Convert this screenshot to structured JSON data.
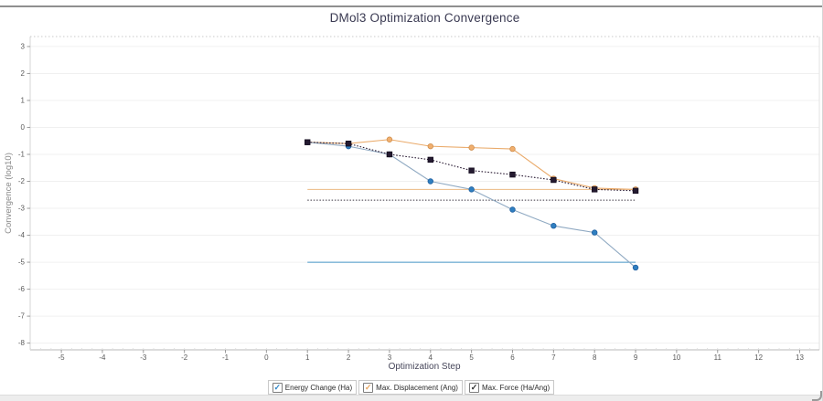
{
  "title": "DMol3 Optimization Convergence",
  "chart_data": {
    "type": "line",
    "title": "DMol3 Optimization Convergence",
    "xlabel": "Optimization Step",
    "ylabel": "Convergence (log10)",
    "x_range": [
      -5.76,
      13.48
    ],
    "y_range": [
      -8.25,
      3.37
    ],
    "x_ticks": [
      -5,
      -4,
      -3,
      -2,
      -1,
      0,
      1,
      2,
      3,
      4,
      5,
      6,
      7,
      8,
      9,
      10,
      11,
      12,
      13
    ],
    "y_ticks": [
      3,
      2,
      1,
      0,
      -1,
      -2,
      -3,
      -4,
      -5,
      -6,
      -7,
      -8
    ],
    "grid": "horizontal",
    "legend_position": "bottom",
    "threshold_x_span": [
      1,
      9
    ],
    "x": [
      1,
      2,
      3,
      4,
      5,
      6,
      7,
      8,
      9
    ],
    "series": [
      {
        "name": "Energy Change (Ha)",
        "values": [
          -0.55,
          -0.7,
          -1.0,
          -2.0,
          -2.3,
          -3.05,
          -3.65,
          -3.9,
          -5.2
        ],
        "threshold": -5.0,
        "color": "#8fa9c2",
        "marker_color": "#2f7fc1",
        "marker_edge": "#1f5f9f",
        "threshold_color": "#4796c8",
        "check_color": "#2e86c8",
        "marker": "circle",
        "line_style": "solid",
        "threshold_style": "solid"
      },
      {
        "name": "Max. Displacement (Ang)",
        "values": [
          -0.55,
          -0.6,
          -0.45,
          -0.7,
          -0.75,
          -0.8,
          -1.9,
          -2.25,
          -2.3
        ],
        "threshold": -2.3,
        "color": "#eaaa6a",
        "marker_color": "#f1af6e",
        "marker_edge": "#cf8f4e",
        "threshold_color": "#ecba83",
        "check_color": "#e8a55f",
        "marker": "circle",
        "line_style": "solid",
        "threshold_style": "solid"
      },
      {
        "name": "Max. Force (Ha/Ang)",
        "values": [
          -0.55,
          -0.6,
          -1.0,
          -1.2,
          -1.6,
          -1.75,
          -1.95,
          -2.3,
          -2.35
        ],
        "threshold": -2.7,
        "color": "#2a1b33",
        "marker_color": "#241a30",
        "marker_edge": "#140c1e",
        "threshold_color": "#3a3440",
        "check_color": "#2b2b2b",
        "marker": "square",
        "line_style": "dotted",
        "threshold_style": "dotted"
      }
    ]
  },
  "legend": {
    "checkbox_glyph": "✓"
  }
}
